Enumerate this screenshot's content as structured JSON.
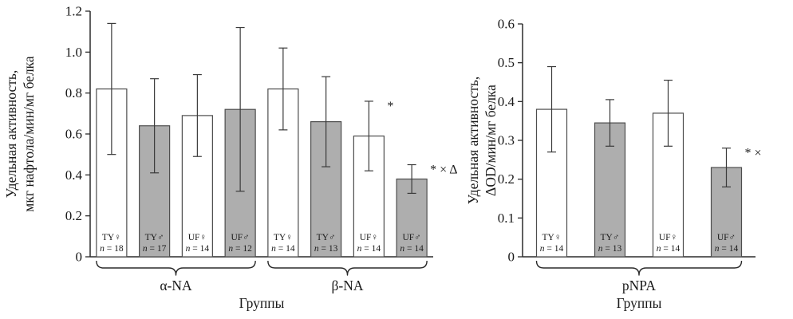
{
  "figure_title": "",
  "colors": {
    "bar_white": "#ffffff",
    "bar_gray": "#aeaeae",
    "bar_stroke": "#4d4d4d",
    "axis": "#2b2b2b",
    "error": "#3a3a3a",
    "text": "#1a1a1a"
  },
  "chart_data": [
    {
      "type": "bar",
      "title": "",
      "ylabel_lines": [
        "Удельная активность,",
        "мкг нафтола/мин/мг белка"
      ],
      "xlabel": "Группы",
      "ylim": [
        0,
        1.2
      ],
      "ytick_vals": [
        0,
        0.2,
        0.4,
        0.6,
        0.8,
        1.0,
        1.2
      ],
      "ytick_labels": [
        "0",
        "0.2",
        "0.4",
        "0.6",
        "0.8",
        "1.0",
        "1.2"
      ],
      "legend": "none",
      "grid": false,
      "groups": [
        {
          "label": "α-NA",
          "bars": [
            {
              "label": "TY♀",
              "n": 18,
              "value": 0.82,
              "err": 0.32,
              "fill": "white",
              "annotation": ""
            },
            {
              "label": "TY♂",
              "n": 17,
              "value": 0.64,
              "err": 0.23,
              "fill": "gray",
              "annotation": ""
            },
            {
              "label": "UF♀",
              "n": 14,
              "value": 0.69,
              "err": 0.2,
              "fill": "white",
              "annotation": ""
            },
            {
              "label": "UF♂",
              "n": 12,
              "value": 0.72,
              "err": 0.4,
              "fill": "gray",
              "annotation": ""
            }
          ]
        },
        {
          "label": "β-NA",
          "bars": [
            {
              "label": "TY♀",
              "n": 14,
              "value": 0.82,
              "err": 0.2,
              "fill": "white",
              "annotation": ""
            },
            {
              "label": "TY♂",
              "n": 13,
              "value": 0.66,
              "err": 0.22,
              "fill": "gray",
              "annotation": ""
            },
            {
              "label": "UF♀",
              "n": 14,
              "value": 0.59,
              "err": 0.17,
              "fill": "white",
              "annotation": "*"
            },
            {
              "label": "UF♂",
              "n": 14,
              "value": 0.38,
              "err": 0.07,
              "fill": "gray",
              "annotation": "* × Δ"
            }
          ]
        }
      ]
    },
    {
      "type": "bar",
      "title": "",
      "ylabel_lines": [
        "Удельная активность,",
        "ΔOD/мин/мг белка"
      ],
      "xlabel": "Группы",
      "ylim": [
        0,
        0.6
      ],
      "ytick_vals": [
        0,
        0.1,
        0.2,
        0.3,
        0.4,
        0.5,
        0.6
      ],
      "ytick_labels": [
        "0",
        "0.1",
        "0.2",
        "0.3",
        "0.4",
        "0.5",
        "0.6"
      ],
      "legend": "none",
      "grid": false,
      "groups": [
        {
          "label": "pNPA",
          "bars": [
            {
              "label": "TY♀",
              "n": 14,
              "value": 0.38,
              "err": 0.11,
              "fill": "white",
              "annotation": ""
            },
            {
              "label": "TY♂",
              "n": 13,
              "value": 0.345,
              "err": 0.06,
              "fill": "gray",
              "annotation": ""
            },
            {
              "label": "UF♀",
              "n": 14,
              "value": 0.37,
              "err": 0.085,
              "fill": "white",
              "annotation": ""
            },
            {
              "label": "UF♂",
              "n": 14,
              "value": 0.23,
              "err": 0.05,
              "fill": "gray",
              "annotation": "* ×"
            }
          ]
        }
      ]
    }
  ]
}
